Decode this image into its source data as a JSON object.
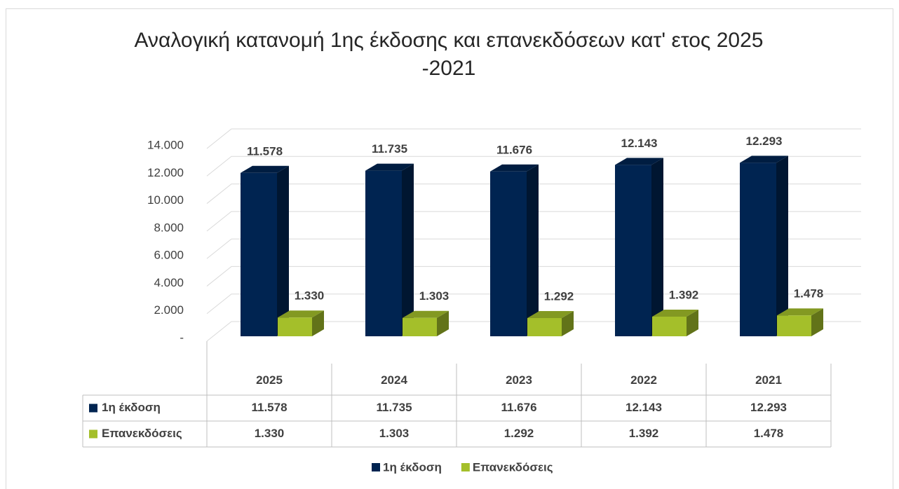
{
  "chart_data": {
    "type": "bar3d",
    "title": "Αναλογική κατανομή 1ης έκδοσης και επανεκδόσεων κατ' ετος 2025 -2021",
    "categories": [
      "2025",
      "2024",
      "2023",
      "2022",
      "2021"
    ],
    "series": [
      {
        "name": "1η έκδοση",
        "color": "#002451",
        "values": [
          11578,
          11735,
          11676,
          12143,
          12293
        ],
        "value_labels": [
          "11.578",
          "11.735",
          "11.676",
          "12.143",
          "12.293"
        ]
      },
      {
        "name": "Επανεκδόσεις",
        "color": "#a4bf2a",
        "values": [
          1330,
          1303,
          1292,
          1392,
          1478
        ],
        "value_labels": [
          "1.330",
          "1.303",
          "1.292",
          "1.392",
          "1.478"
        ]
      }
    ],
    "ylim": [
      0,
      14000
    ],
    "yticks": [
      {
        "value": 0,
        "label": "-"
      },
      {
        "value": 2000,
        "label": "2.000"
      },
      {
        "value": 4000,
        "label": "4.000"
      },
      {
        "value": 6000,
        "label": "6.000"
      },
      {
        "value": 8000,
        "label": "8.000"
      },
      {
        "value": 10000,
        "label": "10.000"
      },
      {
        "value": 12000,
        "label": "12.000"
      },
      {
        "value": 14000,
        "label": "14.000"
      }
    ],
    "grid": true,
    "legend": "bottom"
  }
}
